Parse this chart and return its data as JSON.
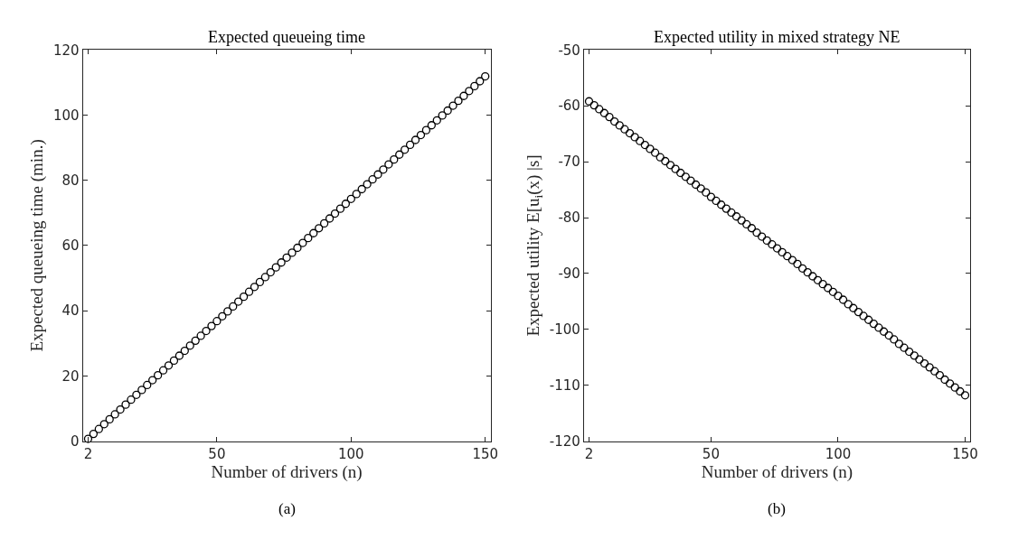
{
  "chart_data": [
    {
      "type": "scatter",
      "title": "Expected queueing time",
      "xlabel": "Number of drivers (n)",
      "ylabel": "Expected queueing time (min.)",
      "annotations": [
        "(a)"
      ],
      "marker": "circle",
      "xlim": [
        0,
        152
      ],
      "xticks": [
        2,
        50,
        100,
        150
      ],
      "ylim": [
        0,
        120
      ],
      "yticks": [
        0,
        20,
        40,
        60,
        80,
        100,
        120
      ],
      "x": [
        2,
        4,
        6,
        8,
        10,
        12,
        14,
        16,
        18,
        20,
        22,
        24,
        26,
        28,
        30,
        32,
        34,
        36,
        38,
        40,
        42,
        44,
        46,
        48,
        50,
        52,
        54,
        56,
        58,
        60,
        62,
        64,
        66,
        68,
        70,
        72,
        74,
        76,
        78,
        80,
        82,
        84,
        86,
        88,
        90,
        92,
        94,
        96,
        98,
        100,
        102,
        104,
        106,
        108,
        110,
        112,
        114,
        116,
        118,
        120,
        122,
        124,
        126,
        128,
        130,
        132,
        134,
        136,
        138,
        140,
        142,
        144,
        146,
        148,
        150
      ],
      "series": [
        {
          "color": "#000000",
          "values": [
            0.7,
            2.2,
            3.7,
            5.2,
            6.7,
            8.2,
            9.7,
            11.2,
            12.7,
            14.2,
            15.7,
            17.2,
            18.7,
            20.2,
            21.7,
            23.2,
            24.7,
            26.2,
            27.7,
            29.3,
            30.8,
            32.3,
            33.8,
            35.3,
            36.8,
            38.3,
            39.8,
            41.3,
            42.8,
            44.3,
            45.8,
            47.3,
            48.8,
            50.3,
            51.8,
            53.3,
            54.8,
            56.3,
            57.8,
            59.3,
            60.8,
            62.3,
            63.8,
            65.3,
            66.8,
            68.3,
            69.8,
            71.3,
            72.8,
            74.3,
            75.8,
            77.3,
            78.8,
            80.3,
            81.8,
            83.3,
            84.9,
            86.4,
            87.9,
            89.4,
            90.9,
            92.4,
            93.9,
            95.4,
            96.9,
            98.4,
            99.9,
            101.4,
            102.9,
            104.4,
            105.9,
            107.4,
            108.9,
            110.4,
            111.9
          ]
        }
      ]
    },
    {
      "type": "scatter",
      "title": "Expected utility in mixed strategy NE",
      "xlabel": "Number of drivers (n)",
      "ylabel": "Expected utility E[u$_{i}$(x) |s]",
      "annotations": [
        "(b)"
      ],
      "marker": "circle",
      "xlim": [
        0,
        152
      ],
      "xticks": [
        2,
        50,
        100,
        150
      ],
      "ylim": [
        -120,
        -50
      ],
      "yticks": [
        -120,
        -110,
        -100,
        -90,
        -80,
        -70,
        -60,
        -50
      ],
      "x": [
        2,
        4,
        6,
        8,
        10,
        12,
        14,
        16,
        18,
        20,
        22,
        24,
        26,
        28,
        30,
        32,
        34,
        36,
        38,
        40,
        42,
        44,
        46,
        48,
        50,
        52,
        54,
        56,
        58,
        60,
        62,
        64,
        66,
        68,
        70,
        72,
        74,
        76,
        78,
        80,
        82,
        84,
        86,
        88,
        90,
        92,
        94,
        96,
        98,
        100,
        102,
        104,
        106,
        108,
        110,
        112,
        114,
        116,
        118,
        120,
        122,
        124,
        126,
        128,
        130,
        132,
        134,
        136,
        138,
        140,
        142,
        144,
        146,
        148,
        150
      ],
      "series": [
        {
          "color": "#000000",
          "values": [
            -59.2,
            -59.9,
            -60.6,
            -61.3,
            -62.0,
            -62.8,
            -63.5,
            -64.2,
            -64.9,
            -65.6,
            -66.3,
            -67.0,
            -67.7,
            -68.4,
            -69.2,
            -69.9,
            -70.6,
            -71.3,
            -72.0,
            -72.7,
            -73.4,
            -74.1,
            -74.8,
            -75.5,
            -76.3,
            -77.0,
            -77.7,
            -78.4,
            -79.1,
            -79.8,
            -80.5,
            -81.2,
            -81.9,
            -82.7,
            -83.4,
            -84.1,
            -84.8,
            -85.5,
            -86.2,
            -86.9,
            -87.6,
            -88.3,
            -89.1,
            -89.8,
            -90.5,
            -91.2,
            -91.9,
            -92.6,
            -93.3,
            -94.0,
            -94.7,
            -95.5,
            -96.2,
            -96.9,
            -97.6,
            -98.3,
            -99.0,
            -99.7,
            -100.4,
            -101.1,
            -101.8,
            -102.6,
            -103.3,
            -104.0,
            -104.7,
            -105.4,
            -106.1,
            -106.8,
            -107.5,
            -108.2,
            -109.0,
            -109.7,
            -110.4,
            -111.1,
            -111.8
          ]
        }
      ]
    }
  ]
}
